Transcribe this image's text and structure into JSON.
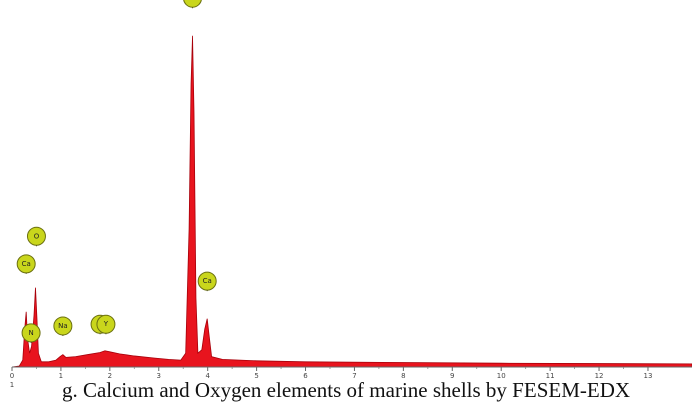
{
  "chart_data": {
    "type": "area",
    "title": "",
    "xlabel": "",
    "ylabel": "",
    "xlim": [
      0,
      13.9
    ],
    "ylim": [
      0,
      100
    ],
    "x_ticks": [
      "0",
      "1",
      "2",
      "3",
      "4",
      "5",
      "6",
      "7",
      "8",
      "9",
      "10",
      "11",
      "12",
      "13"
    ],
    "fill_color": "#e8141e",
    "edge_color": "#a8000a",
    "label_color": "#c9d61c",
    "spectrum": [
      [
        0.0,
        0
      ],
      [
        0.15,
        0.3
      ],
      [
        0.22,
        2
      ],
      [
        0.26,
        11
      ],
      [
        0.29,
        16
      ],
      [
        0.32,
        8
      ],
      [
        0.36,
        4
      ],
      [
        0.4,
        6
      ],
      [
        0.45,
        15
      ],
      [
        0.48,
        23
      ],
      [
        0.51,
        14
      ],
      [
        0.54,
        4
      ],
      [
        0.6,
        1.5
      ],
      [
        0.75,
        1.5
      ],
      [
        0.9,
        2
      ],
      [
        0.98,
        3
      ],
      [
        1.04,
        3.6
      ],
      [
        1.1,
        2.8
      ],
      [
        1.3,
        3
      ],
      [
        1.55,
        3.6
      ],
      [
        1.8,
        4.2
      ],
      [
        1.9,
        4.7
      ],
      [
        2.0,
        4.4
      ],
      [
        2.2,
        3.8
      ],
      [
        2.5,
        3.2
      ],
      [
        2.9,
        2.6
      ],
      [
        3.2,
        2.2
      ],
      [
        3.45,
        2.0
      ],
      [
        3.55,
        4
      ],
      [
        3.62,
        40
      ],
      [
        3.66,
        82
      ],
      [
        3.69,
        96
      ],
      [
        3.72,
        74
      ],
      [
        3.76,
        20
      ],
      [
        3.8,
        4
      ],
      [
        3.88,
        5
      ],
      [
        3.94,
        11
      ],
      [
        3.99,
        14
      ],
      [
        4.03,
        9
      ],
      [
        4.08,
        3
      ],
      [
        4.3,
        2.2
      ],
      [
        5.0,
        1.8
      ],
      [
        6.0,
        1.5
      ],
      [
        8.0,
        1.3
      ],
      [
        10.0,
        1.1
      ],
      [
        12.0,
        1.0
      ],
      [
        13.9,
        0.9
      ]
    ],
    "peaks": [
      {
        "label": "Ca",
        "x": 0.29,
        "y": 16,
        "marker_y": 27
      },
      {
        "label": "O",
        "x": 0.5,
        "y": 23,
        "marker_y": 35
      },
      {
        "label": "N",
        "x": 0.39,
        "y": 4,
        "marker_y": 7
      },
      {
        "label": "Na",
        "x": 1.04,
        "y": 3.6,
        "marker_y": 9
      },
      {
        "label": "C",
        "x": 1.8,
        "y": 4.2,
        "marker_y": 9.5
      },
      {
        "label": "Y",
        "x": 1.92,
        "y": 4.7,
        "marker_y": 9.5
      },
      {
        "label": "Ca",
        "x": 3.69,
        "y": 96,
        "marker_y": 104
      },
      {
        "label": "Ca",
        "x": 3.99,
        "y": 14,
        "marker_y": 22
      }
    ]
  },
  "extra_tick": "1",
  "caption": "g. Calcium and Oxygen elements of marine shells by FESEM-EDX"
}
